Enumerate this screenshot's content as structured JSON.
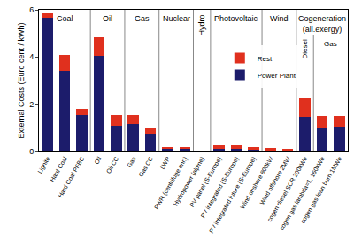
{
  "chart_data": {
    "type": "bar",
    "stacked": true,
    "y_label": "External Costs (Euro cent / kWh)",
    "categories": [
      "Lignite",
      "Hard Coal",
      "Hard Coal PFBC",
      "Oil",
      "Oil CC",
      "Gas",
      "Gas CC",
      "LWR",
      "PWR (centrifuge enr.)",
      "Hydropower (alpine)",
      "PV panel (S-Europe)",
      "PV integrated (S-Europe)",
      "PV integrated future (S-Europe)",
      "Wind onshore 800kW",
      "Wind offshore 2MW",
      "cogen diesel SCR 200kWe",
      "cogen gas lambda=1, 160kWe",
      "cogen gas lean burn 1MWe"
    ],
    "series": [
      {
        "name": "Power Plant",
        "color": "#1c1c6b",
        "values": [
          5.65,
          3.4,
          1.55,
          4.05,
          1.1,
          1.15,
          0.75,
          0.1,
          0.1,
          0.03,
          0.1,
          0.1,
          0.08,
          0.05,
          0.04,
          1.45,
          1.0,
          1.05
        ]
      },
      {
        "name": "Rest",
        "color": "#e0301e",
        "values": [
          0.2,
          0.7,
          0.25,
          0.8,
          0.45,
          0.4,
          0.25,
          0.1,
          0.08,
          0.02,
          0.18,
          0.18,
          0.12,
          0.1,
          0.07,
          0.8,
          0.5,
          0.45
        ]
      }
    ],
    "groups": [
      {
        "label": "Coal",
        "members": [
          "Lignite",
          "Hard Coal",
          "Hard Coal PFBC"
        ]
      },
      {
        "label": "Oil",
        "members": [
          "Oil",
          "Oil CC"
        ]
      },
      {
        "label": "Gas",
        "members": [
          "Gas",
          "Gas CC"
        ]
      },
      {
        "label": "Nuclear",
        "members": [
          "LWR",
          "PWR (centrifuge enr.)"
        ]
      },
      {
        "label": "Hydro",
        "members": [
          "Hydropower (alpine)"
        ]
      },
      {
        "label": "Photovoltaic",
        "members": [
          "PV panel (S-Europe)",
          "PV integrated (S-Europe)",
          "PV integrated future (S-Europe)"
        ]
      },
      {
        "label": "Wind",
        "members": [
          "Wind onshore 800kW",
          "Wind offshore 2MW"
        ]
      },
      {
        "label": "Cogeneration (all.exergy)",
        "members": [
          "cogen diesel SCR 200kWe",
          "cogen gas lambda=1, 160kWe",
          "cogen gas lean burn 1MWe"
        ],
        "subgroups": [
          {
            "label": "Diesel",
            "members": [
              "cogen diesel SCR 200kWe"
            ]
          },
          {
            "label": "Gas",
            "members": [
              "cogen gas lambda=1, 160kWe",
              "cogen gas lean burn 1MWe"
            ]
          }
        ]
      }
    ],
    "ylim": [
      0,
      6
    ],
    "yticks": [
      0,
      2,
      4,
      6
    ],
    "grid": false,
    "legend": "center"
  }
}
